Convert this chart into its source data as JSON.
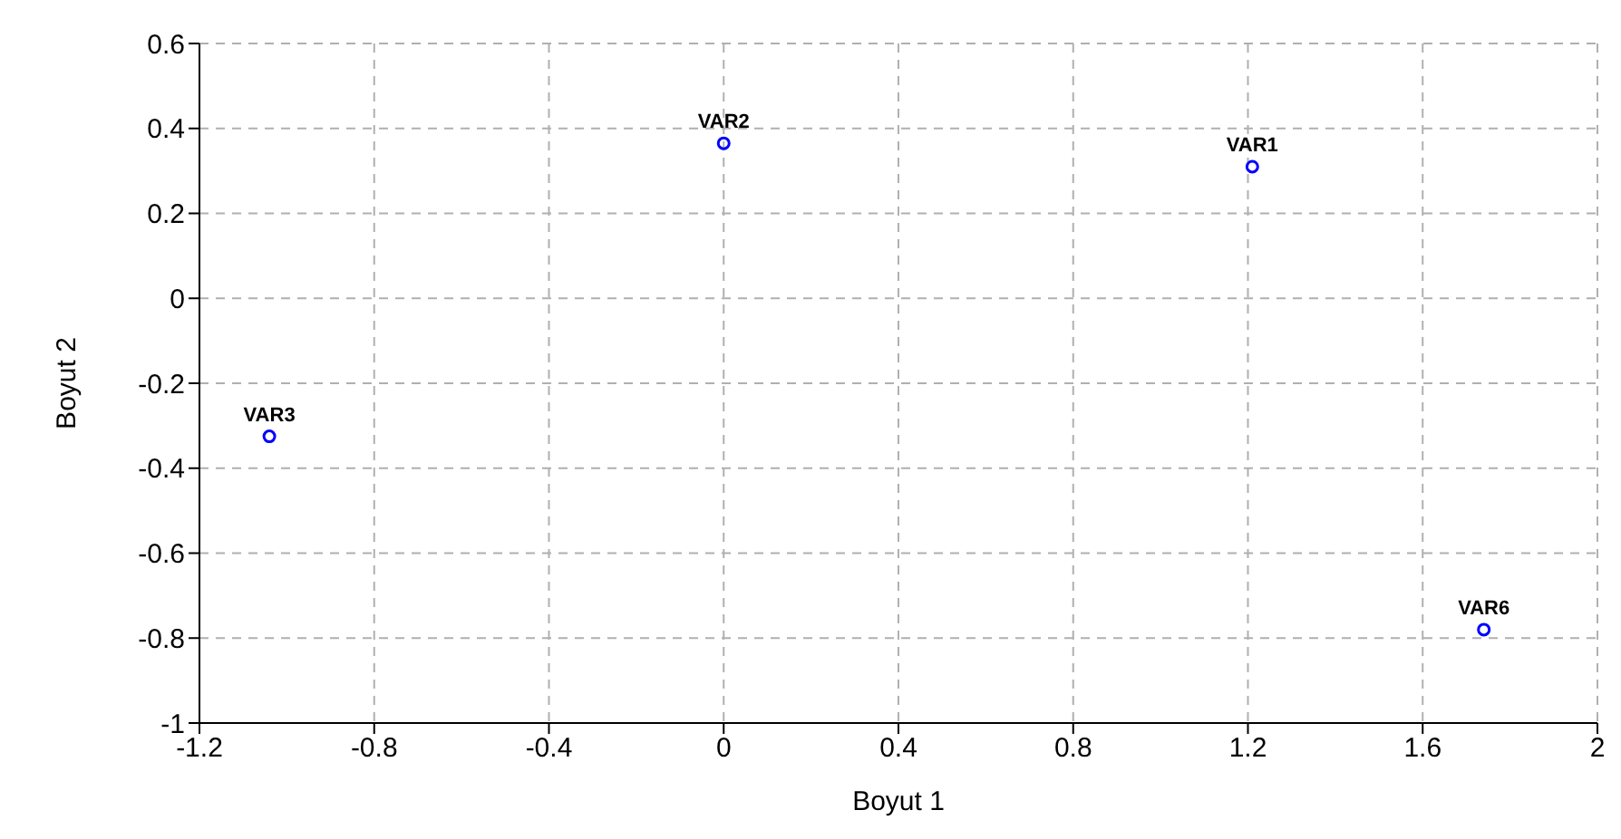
{
  "chart_data": {
    "type": "scatter",
    "xlabel": "Boyut 1",
    "ylabel": "Boyut 2",
    "xlim": [
      -1.2,
      2
    ],
    "xticks": [
      -1.2,
      -0.8,
      -0.4,
      0,
      0.4,
      0.8,
      1.2,
      1.6,
      2
    ],
    "ylim": [
      -1,
      0.6
    ],
    "yticks": [
      -1,
      -0.8,
      -0.6,
      -0.4,
      -0.2,
      0,
      0.2,
      0.4,
      0.6
    ],
    "grid": true,
    "legend": false,
    "marker": "circle",
    "series": [
      {
        "name": "VAR1",
        "color": "#0000ff",
        "x": [
          1.21
        ],
        "values": [
          0.31
        ]
      },
      {
        "name": "VAR2",
        "color": "#0000ff",
        "x": [
          0.0
        ],
        "values": [
          0.365
        ]
      },
      {
        "name": "VAR3",
        "color": "#0000ff",
        "x": [
          -1.04
        ],
        "values": [
          -0.325
        ]
      },
      {
        "name": "VAR6",
        "color": "#0000ff",
        "x": [
          1.74
        ],
        "values": [
          -0.78
        ]
      }
    ]
  }
}
